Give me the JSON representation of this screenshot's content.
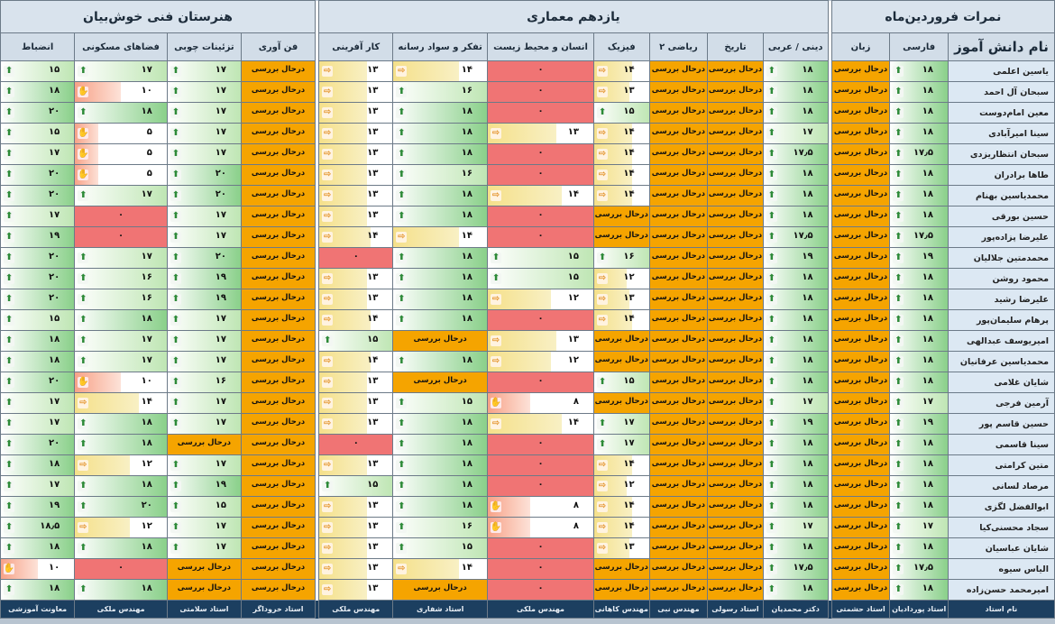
{
  "sections": {
    "grades": "نمرات فروردین‌ماه",
    "architecture": "یازدهم معماری",
    "school": "هنرستان فنی خوش‌بیان"
  },
  "columns": [
    "نام دانش آموز",
    "فارسی",
    "زبان",
    "دینی / عربی",
    "تاریخ",
    "ریاضی ۲",
    "فیزیک",
    "انسان و محیط زیست",
    "تفکر و سواد رسانه",
    "کار آفرینی",
    "فن آوری",
    "تزئینات چوبی",
    "فضاهای مسکونی",
    "انضباط"
  ],
  "teachers": [
    "نام استاد",
    "استاد پوردادیان",
    "استاد حشمتی",
    "دکتر محمدیان",
    "استاد رسولی",
    "مهندس نبی",
    "مهندس کاهانی",
    "مهندس ملکی",
    "استاد شفاری",
    "مهندس ملکی",
    "استاد خروداگر",
    "استاد سلامتی",
    "مهندس ملکی",
    "معاونت آموزشی"
  ],
  "pending_label": "درحال بررسی",
  "students": [
    {
      "name": "یاسین اعلمی",
      "g": [
        "۱۸",
        "P",
        "۱۸",
        "P",
        "P",
        "۱۴",
        "۰",
        "۱۴",
        "۱۳",
        "P",
        "۱۷",
        "۱۷",
        "۱۵"
      ]
    },
    {
      "name": "سبحان آل احمد",
      "g": [
        "۱۸",
        "P",
        "۱۸",
        "P",
        "P",
        "۱۳",
        "۰",
        "۱۶",
        "۱۳",
        "P",
        "۱۷",
        "۱۰",
        "۱۸"
      ]
    },
    {
      "name": "معین امام‌دوست",
      "g": [
        "۱۸",
        "P",
        "۱۸",
        "P",
        "P",
        "۱۵",
        "۰",
        "۱۸",
        "۱۳",
        "P",
        "۱۷",
        "۱۸",
        "۲۰"
      ]
    },
    {
      "name": "سینا امیرآبادی",
      "g": [
        "۱۸",
        "P",
        "۱۷",
        "P",
        "P",
        "۱۴",
        "۱۳",
        "۱۸",
        "۱۳",
        "P",
        "۱۷",
        "۵",
        "۱۵"
      ]
    },
    {
      "name": "سبحان انتظاریزدی",
      "g": [
        "۱۷٫۵",
        "P",
        "۱۷٫۵",
        "P",
        "P",
        "۱۴",
        "۰",
        "۱۸",
        "۱۳",
        "P",
        "۱۷",
        "۵",
        "۱۷"
      ]
    },
    {
      "name": "طاها برادران",
      "g": [
        "۱۸",
        "P",
        "۱۸",
        "P",
        "P",
        "۱۴",
        "۰",
        "۱۶",
        "۱۳",
        "P",
        "۲۰",
        "۵",
        "۲۰"
      ]
    },
    {
      "name": "محمدیاسین بهنام",
      "g": [
        "۱۸",
        "P",
        "۱۸",
        "P",
        "P",
        "۱۴",
        "۱۴",
        "۱۸",
        "۱۳",
        "P",
        "۲۰",
        "۱۷",
        "۲۰"
      ]
    },
    {
      "name": "حسین بورقی",
      "g": [
        "۱۸",
        "P",
        "۱۸",
        "P",
        "P",
        "P",
        "۰",
        "۱۸",
        "۱۳",
        "P",
        "۱۷",
        "۰",
        "۱۷"
      ]
    },
    {
      "name": "علیرضا پزاده‌پور",
      "g": [
        "۱۷٫۵",
        "P",
        "۱۷٫۵",
        "P",
        "P",
        "P",
        "۰",
        "۱۴",
        "۱۴",
        "P",
        "۱۷",
        "۰",
        "۱۹"
      ]
    },
    {
      "name": "محمدمتین جلالیان",
      "g": [
        "۱۹",
        "P",
        "۱۹",
        "P",
        "P",
        "۱۶",
        "۱۵",
        "۱۸",
        "۰",
        "P",
        "۲۰",
        "۱۷",
        "۲۰"
      ]
    },
    {
      "name": "محمود روشن",
      "g": [
        "۱۸",
        "P",
        "۱۸",
        "P",
        "P",
        "۱۲",
        "۱۵",
        "۱۸",
        "۱۳",
        "P",
        "۱۹",
        "۱۶",
        "۲۰"
      ]
    },
    {
      "name": "علیرضا رشید",
      "g": [
        "۱۸",
        "P",
        "۱۸",
        "P",
        "P",
        "۱۳",
        "۱۲",
        "۱۸",
        "۱۳",
        "P",
        "۱۹",
        "۱۶",
        "۲۰"
      ]
    },
    {
      "name": "پرهام سلیمان‌پور",
      "g": [
        "۱۸",
        "P",
        "۱۸",
        "P",
        "P",
        "۱۴",
        "۰",
        "۱۸",
        "۱۴",
        "P",
        "۱۷",
        "۱۸",
        "۱۵"
      ]
    },
    {
      "name": "امیریوسف عبدالهی",
      "g": [
        "۱۸",
        "P",
        "۱۸",
        "P",
        "P",
        "P",
        "۱۳",
        "P",
        "۱۵",
        "P",
        "۱۷",
        "۱۷",
        "۱۸"
      ]
    },
    {
      "name": "محمدیاسین عرفانیان",
      "g": [
        "۱۸",
        "P",
        "۱۸",
        "P",
        "P",
        "P",
        "۱۲",
        "۱۸",
        "۱۴",
        "P",
        "۱۷",
        "۱۷",
        "۱۸"
      ]
    },
    {
      "name": "شایان غلامی",
      "g": [
        "۱۸",
        "P",
        "۱۸",
        "P",
        "P",
        "۱۵",
        "۰",
        "P",
        "۱۳",
        "P",
        "۱۶",
        "۱۰",
        "۲۰"
      ]
    },
    {
      "name": "آرمین فرجی",
      "g": [
        "۱۷",
        "P",
        "۱۷",
        "P",
        "P",
        "P",
        "۸",
        "۱۵",
        "۱۳",
        "P",
        "۱۷",
        "۱۴",
        "۱۷"
      ]
    },
    {
      "name": "حسین قاسم پور",
      "g": [
        "۱۹",
        "P",
        "۱۹",
        "P",
        "P",
        "۱۷",
        "۱۴",
        "۱۸",
        "۱۳",
        "P",
        "۱۷",
        "۱۸",
        "۱۷"
      ]
    },
    {
      "name": "سینا قاسمی",
      "g": [
        "۱۸",
        "P",
        "۱۸",
        "P",
        "P",
        "۱۷",
        "۰",
        "۱۸",
        "۰",
        "P",
        "P",
        "۱۸",
        "۲۰"
      ]
    },
    {
      "name": "متین کرامتی",
      "g": [
        "۱۸",
        "P",
        "۱۸",
        "P",
        "P",
        "۱۴",
        "۰",
        "۱۸",
        "۱۳",
        "P",
        "۱۷",
        "۱۲",
        "۱۸"
      ]
    },
    {
      "name": "مرصاد لسانی",
      "g": [
        "۱۸",
        "P",
        "۱۸",
        "P",
        "P",
        "۱۲",
        "۰",
        "۱۸",
        "۱۵",
        "P",
        "۱۹",
        "۱۸",
        "۱۷"
      ]
    },
    {
      "name": "ابوالفضل لگزی",
      "g": [
        "۱۸",
        "P",
        "۱۸",
        "P",
        "P",
        "۱۴",
        "۸",
        "۱۸",
        "۱۳",
        "P",
        "۱۵",
        "۲۰",
        "۱۹"
      ]
    },
    {
      "name": "سجاد محسنی‌کیا",
      "g": [
        "۱۷",
        "P",
        "۱۷",
        "P",
        "P",
        "۱۴",
        "۸",
        "۱۶",
        "۱۳",
        "P",
        "۱۷",
        "۱۲",
        "۱۸٫۵"
      ]
    },
    {
      "name": "شایان عباسیان",
      "g": [
        "۱۸",
        "P",
        "۱۸",
        "P",
        "P",
        "۱۳",
        "۰",
        "۱۵",
        "۱۳",
        "P",
        "۱۷",
        "۱۸",
        "۱۸"
      ]
    },
    {
      "name": "الیاس سیوه",
      "g": [
        "۱۷٫۵",
        "P",
        "۱۷٫۵",
        "P",
        "P",
        "P",
        "۰",
        "۱۴",
        "۱۳",
        "P",
        "P",
        "۰",
        "۱۰"
      ]
    },
    {
      "name": "امیرمحمد حسن‌زاده",
      "g": [
        "۱۸",
        "P",
        "۱۸",
        "P",
        "P",
        "P",
        "۰",
        "P",
        "۱۳",
        "P",
        "P",
        "۱۸",
        "۱۸"
      ]
    }
  ]
}
